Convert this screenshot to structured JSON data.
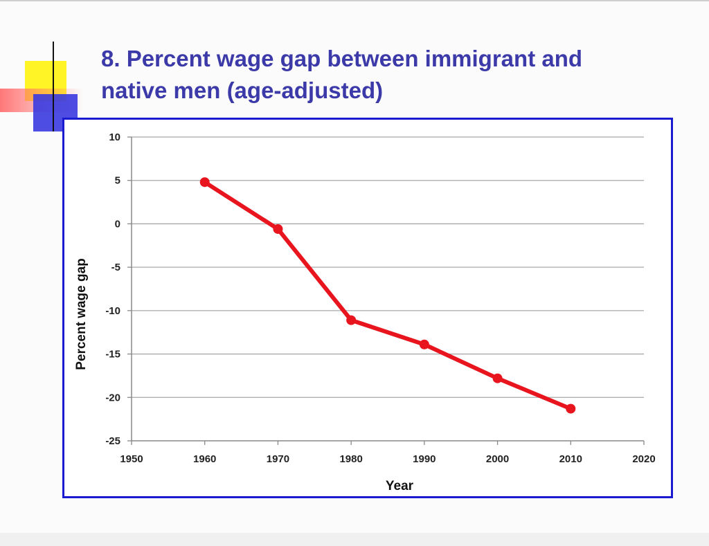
{
  "slide": {
    "title_line1": "8. Percent wage gap between immigrant and",
    "title_line2": "native men (age-adjusted)",
    "title_color": "#3b3aa8",
    "frame_color": "#1a1ad0"
  },
  "chart_data": {
    "type": "line",
    "title": "",
    "xlabel": "Year",
    "ylabel": "Percent wage gap",
    "xlim": [
      1950,
      2020
    ],
    "ylim": [
      -25,
      10
    ],
    "x_ticks": [
      1950,
      1960,
      1970,
      1980,
      1990,
      2000,
      2010,
      2020
    ],
    "y_ticks": [
      10,
      5,
      0,
      -5,
      -10,
      -15,
      -20,
      -25
    ],
    "grid": "horizontal",
    "legend": "none",
    "series": [
      {
        "color": "#e8141e",
        "x": [
          1960,
          1970,
          1980,
          1990,
          2000,
          2010
        ],
        "values": [
          4.8,
          -0.6,
          -11.1,
          -13.9,
          -17.8,
          -21.3
        ]
      }
    ]
  }
}
